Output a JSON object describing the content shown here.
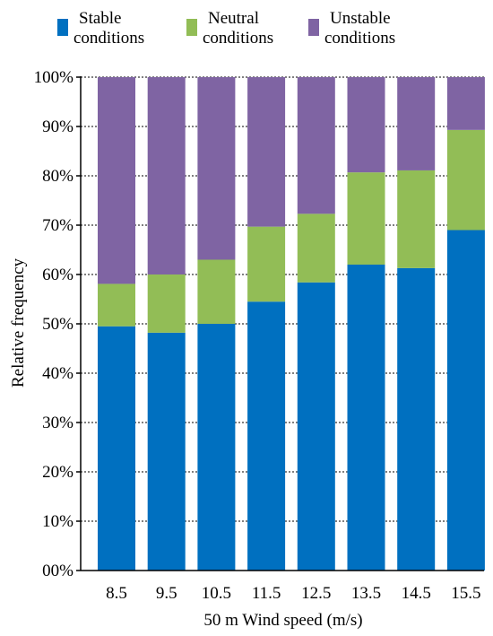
{
  "chart_data": {
    "type": "bar",
    "stacked": true,
    "categories": [
      "8.5",
      "9.5",
      "10.5",
      "11.5",
      "12.5",
      "13.5",
      "14.5",
      "15.5"
    ],
    "series": [
      {
        "name": "Stable conditions",
        "color": "#0070C0",
        "values": [
          49.5,
          48.2,
          50.0,
          54.5,
          58.4,
          62.0,
          61.3,
          69.0
        ]
      },
      {
        "name": "Neutral conditions",
        "color": "#92BD56",
        "values": [
          8.6,
          11.8,
          13.0,
          15.2,
          13.9,
          18.7,
          19.8,
          20.3
        ]
      },
      {
        "name": "Unstable conditions",
        "color": "#7F64A3",
        "values": [
          41.9,
          40.0,
          37.0,
          30.3,
          27.7,
          19.3,
          18.9,
          10.7
        ]
      }
    ],
    "xlabel": "50 m Wind speed (m/s)",
    "ylabel": "Relative frequency",
    "ylim": [
      0,
      100
    ],
    "yticks": [
      "00%",
      "10%",
      "20%",
      "30%",
      "40%",
      "50%",
      "60%",
      "70%",
      "80%",
      "90%",
      "100%"
    ],
    "legend_position": "top",
    "grid": "dashed horizontal"
  }
}
